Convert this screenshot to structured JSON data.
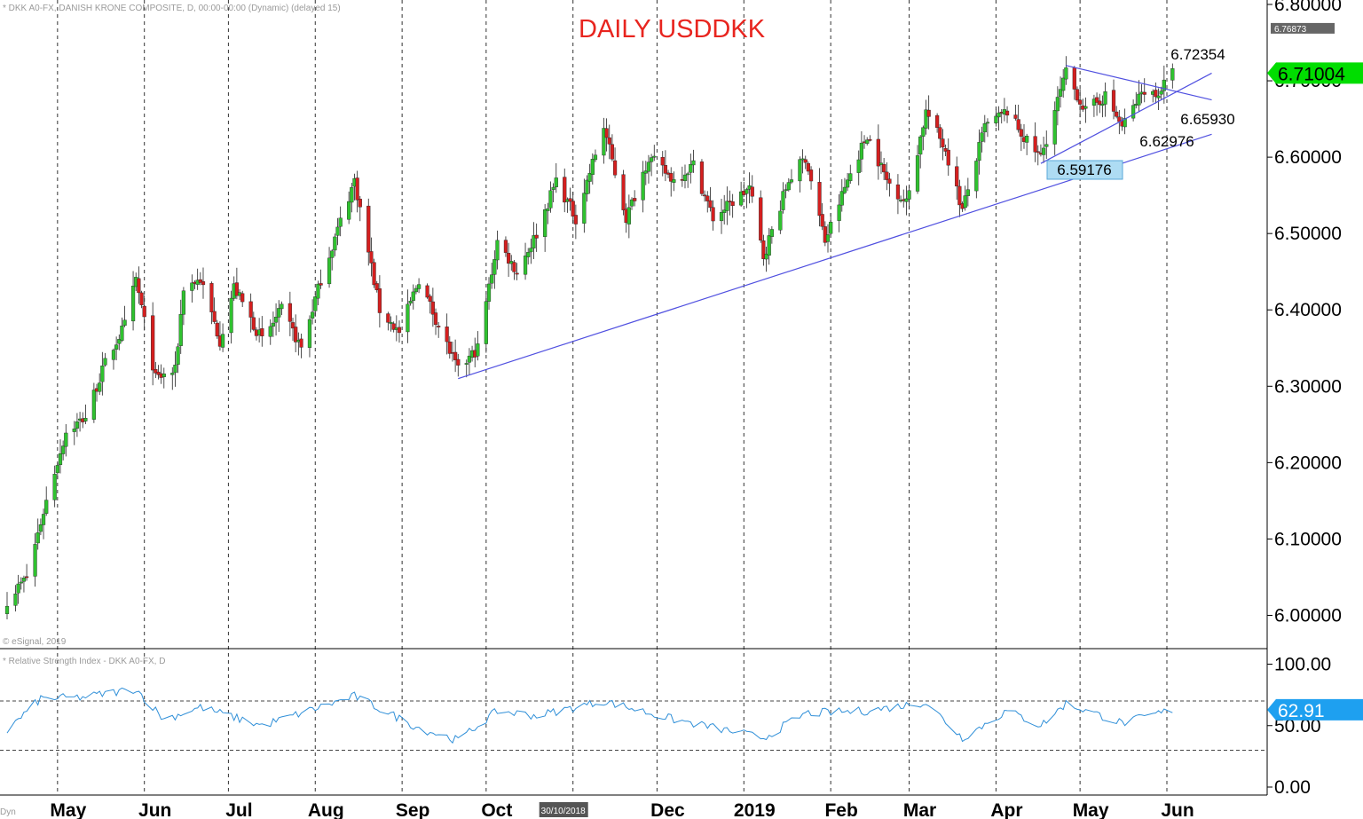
{
  "header": {
    "instrument": "* DKK A0-FX, DANISH KRONE COMPOSITE, D, 00:00-00:00 (Dynamic) (delayed 15)",
    "copyright": "© eSignal, 2019",
    "rsi_label": "* Relative Strength Index - DKK A0-FX, D",
    "corner": "Dyn"
  },
  "chart_data": [
    {
      "type": "candlestick",
      "title": "DAILY USDDKK",
      "x_tick_labels": [
        "May",
        "Jun",
        "Jul",
        "Aug",
        "Sep",
        "Oct",
        "30/10/2018",
        "Dec",
        "2019",
        "Feb",
        "Mar",
        "Apr",
        "May",
        "Jun"
      ],
      "y_tick_labels": [
        "6.80000",
        "6.70000",
        "6.60000",
        "6.50000",
        "6.40000",
        "6.30000",
        "6.20000",
        "6.10000",
        "6.00000"
      ],
      "ylim": [
        5.98,
        6.8
      ],
      "markers": {
        "top_price": "6.76873",
        "last_price": "6.71004"
      },
      "annotations": [
        "6.72354",
        "6.65930",
        "6.62976",
        "6.59176"
      ],
      "colors": {
        "up": "#2fc22f",
        "down": "#d41f1f",
        "trendline": "#5050e0",
        "last_price_bg": "#00dd00",
        "top_marker_bg": "#666666",
        "low_box_bg": "#aedcf3",
        "title": "#e8251f"
      },
      "swing_points": [
        {
          "date": "2018-04-13",
          "close": 6.02
        },
        {
          "date": "2018-04-20",
          "close": 6.05
        },
        {
          "date": "2018-04-27",
          "close": 6.15
        },
        {
          "date": "2018-05-04",
          "close": 6.24
        },
        {
          "date": "2018-05-11",
          "close": 6.26
        },
        {
          "date": "2018-05-18",
          "close": 6.33
        },
        {
          "date": "2018-05-25",
          "close": 6.38
        },
        {
          "date": "2018-05-29",
          "close": 6.44
        },
        {
          "date": "2018-06-05",
          "close": 6.31
        },
        {
          "date": "2018-06-12",
          "close": 6.32
        },
        {
          "date": "2018-06-15",
          "close": 6.43
        },
        {
          "date": "2018-06-21",
          "close": 6.44
        },
        {
          "date": "2018-06-28",
          "close": 6.36
        },
        {
          "date": "2018-07-03",
          "close": 6.43
        },
        {
          "date": "2018-07-13",
          "close": 6.36
        },
        {
          "date": "2018-07-20",
          "close": 6.4
        },
        {
          "date": "2018-07-27",
          "close": 6.35
        },
        {
          "date": "2018-08-03",
          "close": 6.44
        },
        {
          "date": "2018-08-15",
          "close": 6.57
        },
        {
          "date": "2018-08-24",
          "close": 6.4
        },
        {
          "date": "2018-08-31",
          "close": 6.37
        },
        {
          "date": "2018-09-07",
          "close": 6.44
        },
        {
          "date": "2018-09-14",
          "close": 6.38
        },
        {
          "date": "2018-09-21",
          "close": 6.32
        },
        {
          "date": "2018-09-28",
          "close": 6.35
        },
        {
          "date": "2018-10-05",
          "close": 6.49
        },
        {
          "date": "2018-10-12",
          "close": 6.45
        },
        {
          "date": "2018-10-19",
          "close": 6.5
        },
        {
          "date": "2018-10-26",
          "close": 6.57
        },
        {
          "date": "2018-11-02",
          "close": 6.52
        },
        {
          "date": "2018-11-12",
          "close": 6.64
        },
        {
          "date": "2018-11-20",
          "close": 6.52
        },
        {
          "date": "2018-11-28",
          "close": 6.6
        },
        {
          "date": "2018-12-07",
          "close": 6.57
        },
        {
          "date": "2018-12-14",
          "close": 6.59
        },
        {
          "date": "2018-12-21",
          "close": 6.52
        },
        {
          "date": "2019-01-03",
          "close": 6.56
        },
        {
          "date": "2019-01-08",
          "close": 6.47
        },
        {
          "date": "2019-01-17",
          "close": 6.57
        },
        {
          "date": "2019-01-23",
          "close": 6.6
        },
        {
          "date": "2019-01-30",
          "close": 6.49
        },
        {
          "date": "2019-02-07",
          "close": 6.57
        },
        {
          "date": "2019-02-14",
          "close": 6.63
        },
        {
          "date": "2019-02-21",
          "close": 6.57
        },
        {
          "date": "2019-02-28",
          "close": 6.54
        },
        {
          "date": "2019-03-07",
          "close": 6.66
        },
        {
          "date": "2019-03-14",
          "close": 6.61
        },
        {
          "date": "2019-03-20",
          "close": 6.53
        },
        {
          "date": "2019-03-28",
          "close": 6.64
        },
        {
          "date": "2019-04-05",
          "close": 6.66
        },
        {
          "date": "2019-04-12",
          "close": 6.62
        },
        {
          "date": "2019-04-17",
          "close": 6.6
        },
        {
          "date": "2019-04-26",
          "close": 6.71
        },
        {
          "date": "2019-05-03",
          "close": 6.66
        },
        {
          "date": "2019-05-10",
          "close": 6.68
        },
        {
          "date": "2019-05-16",
          "close": 6.64
        },
        {
          "date": "2019-05-24",
          "close": 6.69
        },
        {
          "date": "2019-05-28",
          "close": 6.68
        },
        {
          "date": "2019-06-03",
          "close": 6.71
        }
      ],
      "trendlines": [
        {
          "from": {
            "date": "2018-09-21",
            "price": 6.31
          },
          "to": {
            "date": "2019-06-17",
            "price": 6.63
          }
        },
        {
          "from": {
            "date": "2019-04-17",
            "price": 6.59176
          },
          "to": {
            "date": "2019-06-17",
            "price": 6.71
          }
        },
        {
          "from": {
            "date": "2019-04-26",
            "price": 6.72
          },
          "to": {
            "date": "2019-06-17",
            "price": 6.675
          }
        }
      ]
    },
    {
      "type": "line",
      "title": "Relative Strength Index",
      "y_tick_labels": [
        "100.00",
        "50.00",
        "0.00"
      ],
      "ylim": [
        0,
        100
      ],
      "levels": [
        70,
        30
      ],
      "last_value": "62.91",
      "colors": {
        "line": "#2f8fd8",
        "badge": "#1ea0f0"
      },
      "swing_points": [
        {
          "date": "2018-04-13",
          "value": 46
        },
        {
          "date": "2018-04-25",
          "value": 72
        },
        {
          "date": "2018-05-10",
          "value": 73
        },
        {
          "date": "2018-05-29",
          "value": 80
        },
        {
          "date": "2018-06-08",
          "value": 55
        },
        {
          "date": "2018-06-21",
          "value": 65
        },
        {
          "date": "2018-07-13",
          "value": 50
        },
        {
          "date": "2018-08-15",
          "value": 74
        },
        {
          "date": "2018-09-07",
          "value": 48
        },
        {
          "date": "2018-09-21",
          "value": 38
        },
        {
          "date": "2018-10-05",
          "value": 62
        },
        {
          "date": "2018-10-19",
          "value": 58
        },
        {
          "date": "2018-11-12",
          "value": 70
        },
        {
          "date": "2018-12-07",
          "value": 55
        },
        {
          "date": "2019-01-08",
          "value": 40
        },
        {
          "date": "2019-01-23",
          "value": 60
        },
        {
          "date": "2019-02-14",
          "value": 62
        },
        {
          "date": "2019-03-07",
          "value": 69
        },
        {
          "date": "2019-03-20",
          "value": 40
        },
        {
          "date": "2019-04-05",
          "value": 62
        },
        {
          "date": "2019-04-17",
          "value": 50
        },
        {
          "date": "2019-04-26",
          "value": 68
        },
        {
          "date": "2019-05-16",
          "value": 52
        },
        {
          "date": "2019-06-03",
          "value": 62.91
        }
      ]
    }
  ]
}
